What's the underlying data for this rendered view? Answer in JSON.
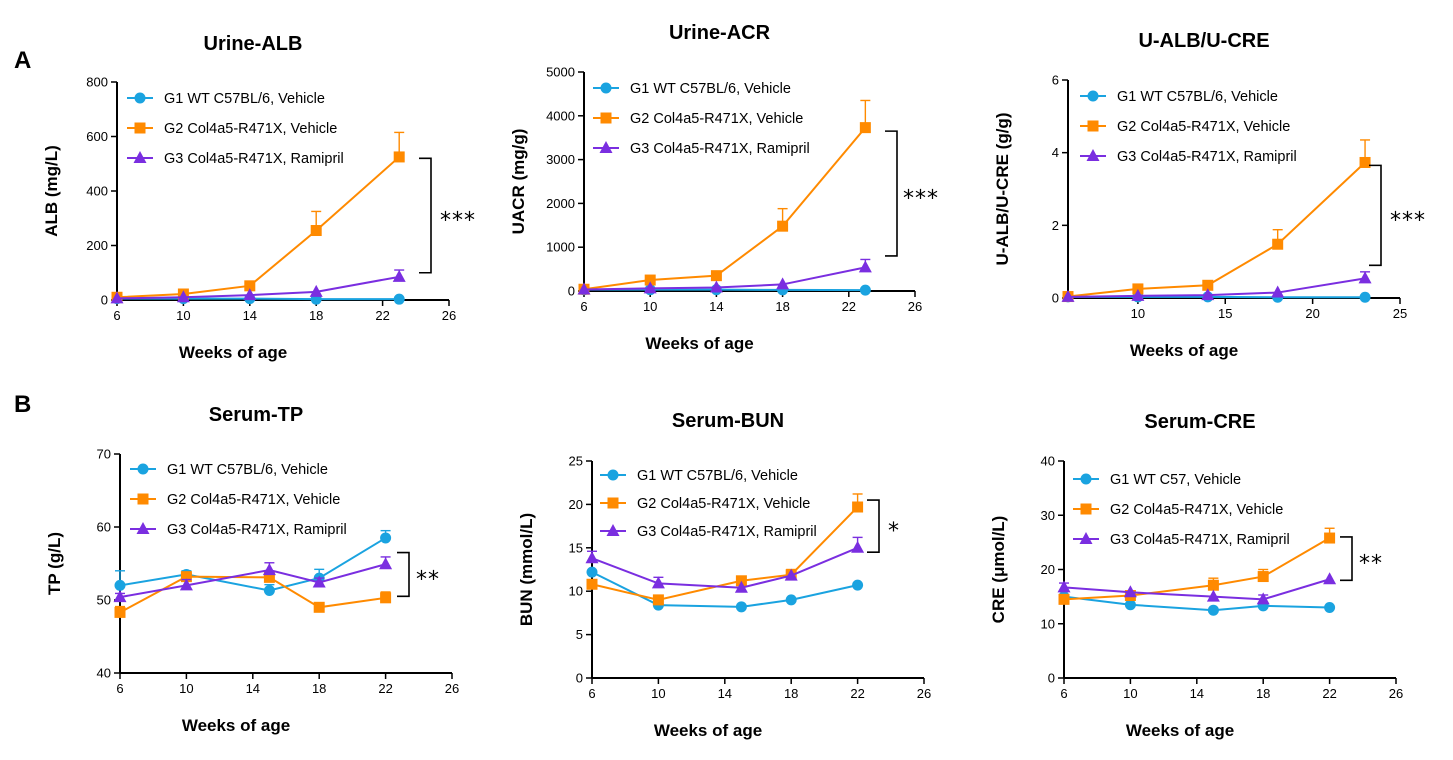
{
  "colors": {
    "G1": "#1aa3e0",
    "G2": "#ff8a00",
    "G3": "#7a2ee0",
    "axis": "#000000"
  },
  "panel_labels": [
    "A",
    "B"
  ],
  "chart_data": [
    {
      "type": "line",
      "panel_label": "A",
      "title": "Urine-ALB",
      "xlabel": "Weeks of age",
      "ylabel": "ALB (mg/L)",
      "xlim": [
        6,
        26
      ],
      "xticks": [
        6,
        10,
        14,
        18,
        22,
        26
      ],
      "ylim": [
        0,
        800
      ],
      "yticks": [
        0,
        200,
        400,
        600,
        800
      ],
      "legend_position": "top-left",
      "significance": "***",
      "series": [
        {
          "name": "G1 WT C57BL/6, Vehicle",
          "color": "#1aa3e0",
          "marker": "circle",
          "x": [
            6,
            10,
            14,
            18,
            23
          ],
          "y": [
            5,
            5,
            5,
            3,
            3
          ],
          "err": [
            0,
            0,
            0,
            0,
            0
          ]
        },
        {
          "name": "G2 Col4a5-R471X, Vehicle",
          "color": "#ff8a00",
          "marker": "square",
          "x": [
            6,
            10,
            14,
            18,
            23
          ],
          "y": [
            10,
            22,
            52,
            255,
            525
          ],
          "err": [
            0,
            0,
            0,
            70,
            90
          ]
        },
        {
          "name": "G3 Col4a5-R471X, Ramipril",
          "color": "#7a2ee0",
          "marker": "triangle",
          "x": [
            6,
            10,
            14,
            18,
            23
          ],
          "y": [
            6,
            10,
            18,
            30,
            85
          ],
          "err": [
            0,
            0,
            0,
            0,
            25
          ]
        }
      ]
    },
    {
      "type": "line",
      "title": "Urine-ACR",
      "xlabel": "Weeks of age",
      "ylabel": "UACR (mg/g)",
      "xlim": [
        6,
        26
      ],
      "xticks": [
        6,
        10,
        14,
        18,
        22,
        26
      ],
      "ylim": [
        0,
        5000
      ],
      "yticks": [
        0,
        1000,
        2000,
        3000,
        4000,
        5000
      ],
      "legend_position": "top-left",
      "significance": "***",
      "series": [
        {
          "name": "G1 WT C57BL/6, Vehicle",
          "color": "#1aa3e0",
          "marker": "circle",
          "x": [
            6,
            10,
            14,
            18,
            23
          ],
          "y": [
            30,
            30,
            30,
            25,
            20
          ],
          "err": [
            0,
            0,
            0,
            0,
            0
          ]
        },
        {
          "name": "G2 Col4a5-R471X, Vehicle",
          "color": "#ff8a00",
          "marker": "square",
          "x": [
            6,
            10,
            14,
            18,
            23
          ],
          "y": [
            40,
            250,
            350,
            1480,
            3730
          ],
          "err": [
            0,
            0,
            0,
            400,
            620
          ]
        },
        {
          "name": "G3 Col4a5-R471X, Ramipril",
          "color": "#7a2ee0",
          "marker": "triangle",
          "x": [
            6,
            10,
            14,
            18,
            23
          ],
          "y": [
            35,
            60,
            80,
            150,
            540
          ],
          "err": [
            0,
            0,
            0,
            0,
            180
          ]
        }
      ]
    },
    {
      "type": "line",
      "title": "U-ALB/U-CRE",
      "xlabel": "Weeks of age",
      "ylabel": "U-ALB/U-CRE (g/g)",
      "xlim": [
        6,
        25
      ],
      "xticks": [
        10,
        15,
        20,
        25
      ],
      "ylim": [
        0,
        6
      ],
      "yticks": [
        0,
        2,
        4,
        6
      ],
      "legend_position": "top-left",
      "significance": "***",
      "series": [
        {
          "name": "G1 WT C57BL/6, Vehicle",
          "color": "#1aa3e0",
          "marker": "circle",
          "x": [
            6,
            10,
            14,
            18,
            23
          ],
          "y": [
            0.03,
            0.03,
            0.03,
            0.02,
            0.02
          ],
          "err": [
            0,
            0,
            0,
            0,
            0
          ]
        },
        {
          "name": "G2 Col4a5-R471X, Vehicle",
          "color": "#ff8a00",
          "marker": "square",
          "x": [
            6,
            10,
            14,
            18,
            23
          ],
          "y": [
            0.04,
            0.25,
            0.35,
            1.48,
            3.73
          ],
          "err": [
            0,
            0,
            0,
            0.4,
            0.62
          ]
        },
        {
          "name": "G3 Col4a5-R471X, Ramipril",
          "color": "#7a2ee0",
          "marker": "triangle",
          "x": [
            6,
            10,
            14,
            18,
            23
          ],
          "y": [
            0.03,
            0.06,
            0.08,
            0.15,
            0.54
          ],
          "err": [
            0,
            0,
            0,
            0,
            0.18
          ]
        }
      ]
    },
    {
      "type": "line",
      "panel_label": "B",
      "title": "Serum-TP",
      "xlabel": "Weeks of age",
      "ylabel": "TP (g/L)",
      "xlim": [
        6,
        26
      ],
      "xticks": [
        6,
        10,
        14,
        18,
        22,
        26
      ],
      "ylim": [
        40,
        70
      ],
      "yticks": [
        40,
        50,
        60,
        70
      ],
      "legend_position": "top-left",
      "significance": "**",
      "series": [
        {
          "name": "G1 WT C57BL/6, Vehicle",
          "color": "#1aa3e0",
          "marker": "circle",
          "x": [
            6,
            10,
            15,
            18,
            22
          ],
          "y": [
            52,
            53.5,
            51.3,
            53,
            58.5
          ],
          "err": [
            2,
            0.5,
            0.8,
            1.2,
            1
          ]
        },
        {
          "name": "G2 Col4a5-R471X, Vehicle",
          "color": "#ff8a00",
          "marker": "square",
          "x": [
            6,
            10,
            15,
            18,
            22
          ],
          "y": [
            48.3,
            53.2,
            53.1,
            49,
            50.3
          ],
          "err": [
            0.8,
            0,
            0.8,
            0,
            0.8
          ]
        },
        {
          "name": "G3 Col4a5-R471X, Ramipril",
          "color": "#7a2ee0",
          "marker": "triangle",
          "x": [
            6,
            10,
            15,
            18,
            22
          ],
          "y": [
            50.4,
            52,
            54.1,
            52.4,
            54.9
          ],
          "err": [
            0.5,
            0.8,
            1,
            0.6,
            1
          ]
        }
      ]
    },
    {
      "type": "line",
      "title": "Serum-BUN",
      "xlabel": "Weeks of age",
      "ylabel": "BUN (mmol/L)",
      "xlim": [
        6,
        26
      ],
      "xticks": [
        6,
        10,
        14,
        18,
        22,
        26
      ],
      "ylim": [
        0,
        25
      ],
      "yticks": [
        0,
        5,
        10,
        15,
        20,
        25
      ],
      "legend_position": "top-left",
      "significance": "*",
      "series": [
        {
          "name": "G1 WT C57BL/6, Vehicle",
          "color": "#1aa3e0",
          "marker": "circle",
          "x": [
            6,
            10,
            15,
            18,
            22
          ],
          "y": [
            12.2,
            8.4,
            8.2,
            9,
            10.7
          ],
          "err": [
            0,
            0,
            0,
            0,
            0
          ]
        },
        {
          "name": "G2 Col4a5-R471X, Vehicle",
          "color": "#ff8a00",
          "marker": "square",
          "x": [
            6,
            10,
            15,
            18,
            22
          ],
          "y": [
            10.8,
            9,
            11.2,
            11.9,
            19.7
          ],
          "err": [
            0,
            0,
            0,
            0.6,
            1.5
          ]
        },
        {
          "name": "G3 Col4a5-R471X, Ramipril",
          "color": "#7a2ee0",
          "marker": "triangle",
          "x": [
            6,
            10,
            15,
            18,
            22
          ],
          "y": [
            13.8,
            10.9,
            10.4,
            11.8,
            15
          ],
          "err": [
            0.8,
            0.7,
            0,
            0,
            1.2
          ]
        }
      ]
    },
    {
      "type": "line",
      "title": "Serum-CRE",
      "xlabel": "Weeks of age",
      "ylabel": "CRE (μmol/L)",
      "xlim": [
        6,
        26
      ],
      "xticks": [
        6,
        10,
        14,
        18,
        22,
        26
      ],
      "ylim": [
        0,
        40
      ],
      "yticks": [
        0,
        10,
        20,
        30,
        40
      ],
      "legend_position": "top-left",
      "significance": "**",
      "series": [
        {
          "name": "G1 WT C57, Vehicle",
          "color": "#1aa3e0",
          "marker": "circle",
          "x": [
            6,
            10,
            15,
            18,
            22
          ],
          "y": [
            15,
            13.5,
            12.5,
            13.3,
            13
          ],
          "err": [
            0,
            0,
            0,
            0,
            0
          ]
        },
        {
          "name": "G2 Col4a5-R471X, Vehicle",
          "color": "#ff8a00",
          "marker": "square",
          "x": [
            6,
            10,
            15,
            18,
            22
          ],
          "y": [
            14.5,
            15.2,
            17.1,
            18.7,
            25.8
          ],
          "err": [
            0,
            0,
            1.3,
            1.3,
            1.8
          ]
        },
        {
          "name": "G3 Col4a5-R471X, Ramipril",
          "color": "#7a2ee0",
          "marker": "triangle",
          "x": [
            6,
            10,
            15,
            18,
            22
          ],
          "y": [
            16.7,
            15.8,
            15,
            14.5,
            18.2
          ],
          "err": [
            0.8,
            0,
            0,
            0.8,
            0
          ]
        }
      ]
    }
  ]
}
